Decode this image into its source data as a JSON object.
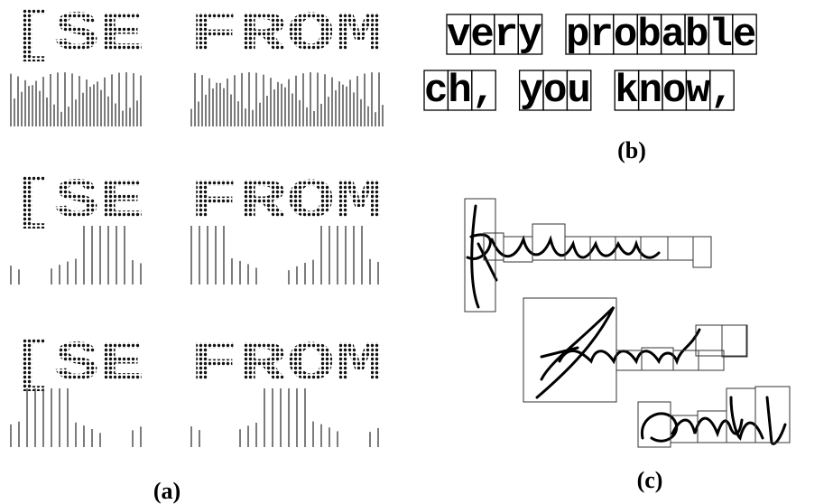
{
  "panels": [
    {
      "label": "(a)",
      "rows": [
        [
          "[SE",
          "FROM"
        ],
        [
          "[SE",
          "FROM"
        ],
        [
          "[SE",
          "FROM"
        ]
      ]
    },
    {
      "label": "(b)",
      "lines": [
        "very probable",
        "ch, you know,"
      ]
    },
    {
      "label": "(c)"
    }
  ]
}
